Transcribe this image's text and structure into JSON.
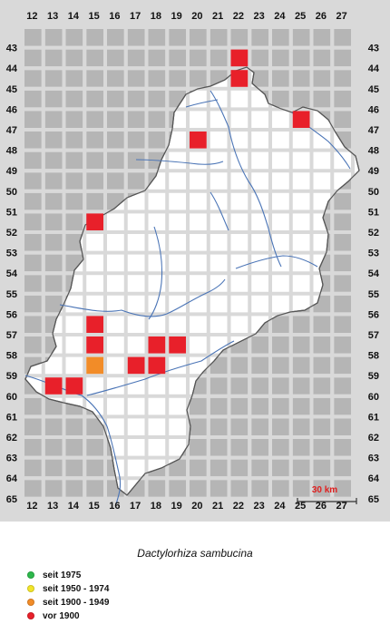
{
  "map": {
    "col_labels": [
      "12",
      "13",
      "14",
      "15",
      "16",
      "17",
      "18",
      "19",
      "20",
      "21",
      "22",
      "23",
      "24",
      "25",
      "26",
      "27"
    ],
    "row_labels": [
      "43",
      "44",
      "45",
      "46",
      "47",
      "48",
      "49",
      "50",
      "51",
      "52",
      "53",
      "54",
      "55",
      "56",
      "57",
      "58",
      "59",
      "60",
      "61",
      "62",
      "63",
      "64",
      "65"
    ],
    "scale_label": "30 km",
    "colors": {
      "background": "#d9d9d9",
      "grid_cell": "#b5b5b5",
      "region": "#ffffff",
      "border": "#555555",
      "river": "#4a74b6",
      "scale": "#e02020"
    },
    "occurrences": [
      {
        "col": "22",
        "row": "44",
        "period": "vor 1900"
      },
      {
        "col": "22",
        "row": "45",
        "period": "vor 1900"
      },
      {
        "col": "25",
        "row": "47",
        "period": "vor 1900"
      },
      {
        "col": "20",
        "row": "48",
        "period": "vor 1900"
      },
      {
        "col": "15",
        "row": "52",
        "period": "vor 1900"
      },
      {
        "col": "15",
        "row": "57",
        "period": "vor 1900"
      },
      {
        "col": "15",
        "row": "58",
        "period": "vor 1900"
      },
      {
        "col": "18",
        "row": "58",
        "period": "vor 1900"
      },
      {
        "col": "19",
        "row": "58",
        "period": "vor 1900"
      },
      {
        "col": "15",
        "row": "59",
        "period": "seit 1900 - 1949"
      },
      {
        "col": "17",
        "row": "59",
        "period": "vor 1900"
      },
      {
        "col": "18",
        "row": "59",
        "period": "vor 1900"
      },
      {
        "col": "13",
        "row": "60",
        "period": "vor 1900"
      },
      {
        "col": "14",
        "row": "60",
        "period": "vor 1900"
      }
    ]
  },
  "title": "Dactylorhiza sambucina",
  "legend": [
    {
      "label": "seit 1975",
      "color": "#2db84b"
    },
    {
      "label": "seit 1950 - 1974",
      "color": "#f2e52a"
    },
    {
      "label": "seit 1900 - 1949",
      "color": "#f28c28"
    },
    {
      "label": "vor 1900",
      "color": "#e8202a"
    }
  ]
}
